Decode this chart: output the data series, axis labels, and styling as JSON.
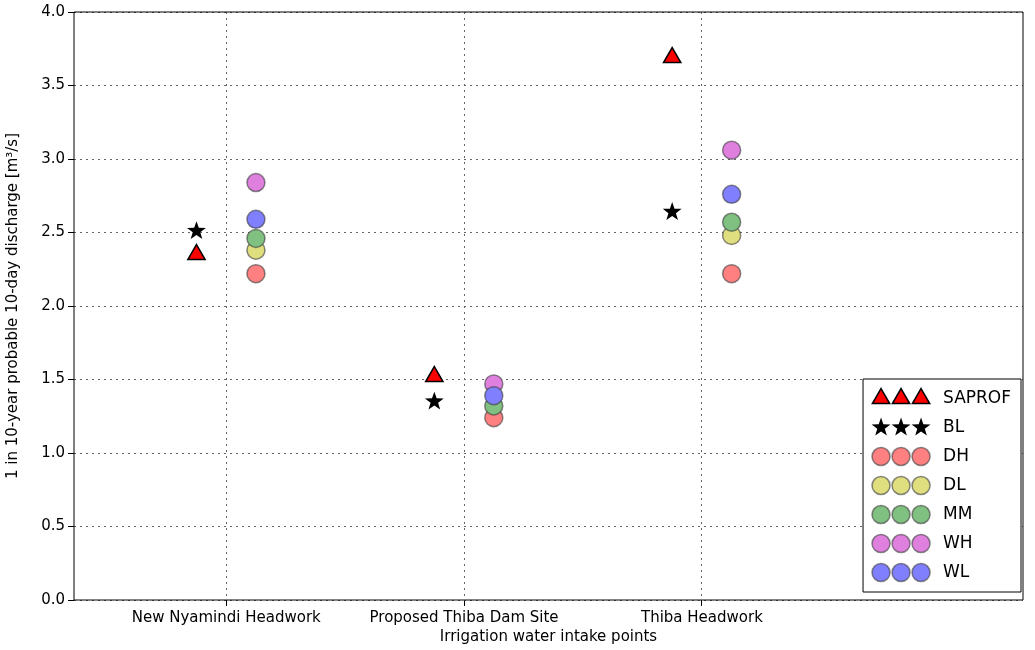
{
  "chart_data": {
    "type": "scatter",
    "xlabel": "Irrigation water intake points",
    "ylabel": "1 in 10-year probable 10-day discharge [m³/s]",
    "categories": [
      "New Nyamindi Headwork",
      "Proposed Thiba Dam Site",
      "Thiba Headwork"
    ],
    "ylim": [
      0,
      4
    ],
    "yticks": [
      {
        "value": 0,
        "label": "0.0"
      },
      0.5,
      {
        "value": 1,
        "label": "1.0"
      },
      1.5,
      {
        "value": 2,
        "label": "2.0"
      },
      2.5,
      {
        "value": 3,
        "label": "3.0"
      },
      3.5,
      {
        "value": 4,
        "label": "4.0"
      }
    ],
    "grid": true,
    "legend": "bottom right",
    "series": [
      {
        "name": "SAPROF",
        "color": "#ff0000",
        "marker": "triangle",
        "values": [
          2.35,
          1.52,
          3.69
        ]
      },
      {
        "name": "BL",
        "color": "#000000",
        "marker": "star",
        "values": [
          2.51,
          1.35,
          2.64
        ]
      },
      {
        "name": "DH",
        "color": "#ff8080",
        "marker": "circle",
        "values": [
          2.22,
          1.24,
          2.22
        ]
      },
      {
        "name": "DL",
        "color": "#dfdf80",
        "marker": "circle",
        "values": [
          2.38,
          null,
          2.48
        ]
      },
      {
        "name": "MM",
        "color": "#80c080",
        "marker": "circle",
        "values": [
          2.46,
          1.32,
          2.57
        ]
      },
      {
        "name": "WH",
        "color": "#df80df",
        "marker": "circle",
        "values": [
          2.84,
          1.47,
          3.06
        ]
      },
      {
        "name": "WL",
        "color": "#8080ff",
        "marker": "circle",
        "values": [
          2.59,
          1.39,
          2.76
        ]
      }
    ]
  }
}
